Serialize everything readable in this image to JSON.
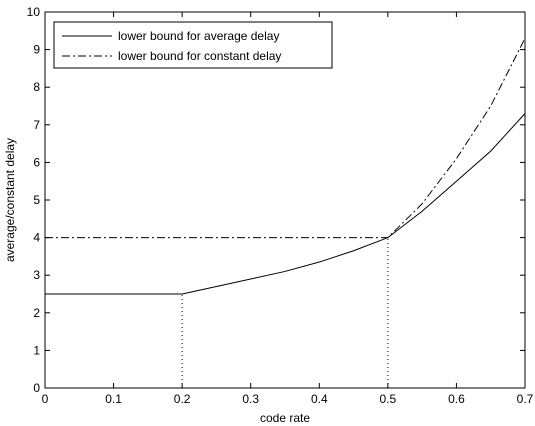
{
  "chart_data": {
    "type": "line",
    "title": "",
    "xlabel": "code rate",
    "ylabel": "average/constant delay",
    "xlim": [
      0,
      0.7
    ],
    "ylim": [
      0,
      10
    ],
    "x_ticks": [
      "0",
      "0.1",
      "0.2",
      "0.3",
      "0.4",
      "0.5",
      "0.6",
      "0.7"
    ],
    "y_ticks": [
      "0",
      "1",
      "2",
      "3",
      "4",
      "5",
      "6",
      "7",
      "8",
      "9",
      "10"
    ],
    "grid": false,
    "legend_position": "top-left",
    "series": [
      {
        "name": "lower bound for average delay",
        "line_style": "solid",
        "color": "#000000",
        "x": [
          0,
          0.2,
          0.25,
          0.3,
          0.35,
          0.4,
          0.45,
          0.5,
          0.55,
          0.6,
          0.65,
          0.7
        ],
        "y": [
          2.5,
          2.5,
          2.7,
          2.9,
          3.1,
          3.35,
          3.65,
          4.0,
          4.7,
          5.5,
          6.3,
          7.3
        ]
      },
      {
        "name": "lower bound for constant delay",
        "line_style": "dashdot",
        "color": "#000000",
        "x": [
          0,
          0.5,
          0.55,
          0.6,
          0.65,
          0.7
        ],
        "y": [
          4.0,
          4.0,
          4.9,
          6.1,
          7.5,
          9.3
        ]
      }
    ],
    "reference_lines": [
      {
        "style": "dotted",
        "x": [
          0.2,
          0.2
        ],
        "y": [
          0,
          2.5
        ]
      },
      {
        "style": "dotted",
        "x": [
          0.5,
          0.5
        ],
        "y": [
          0,
          4.0
        ]
      }
    ]
  }
}
